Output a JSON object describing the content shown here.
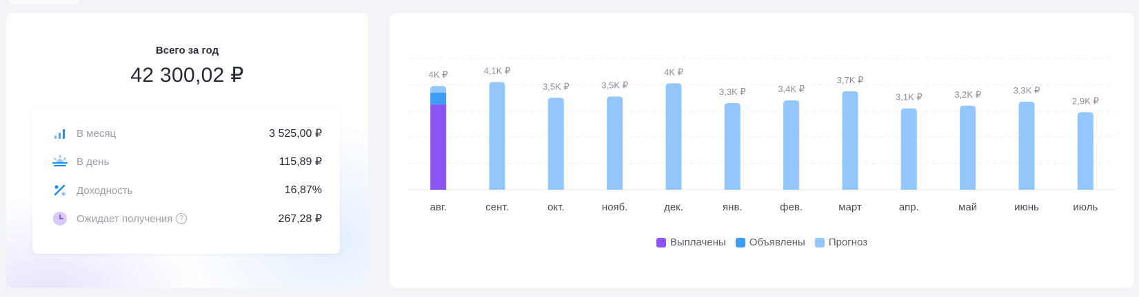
{
  "summary": {
    "title": "Всего за год",
    "total": "42 300,02 ₽",
    "stats": [
      {
        "icon": "bar-chart-icon",
        "label": "В месяц",
        "value": "3 525,00 ₽"
      },
      {
        "icon": "sunrise-icon",
        "label": "В день",
        "value": "115,89 ₽"
      },
      {
        "icon": "percent-icon",
        "label": "Доходность",
        "value": "16,87%"
      },
      {
        "icon": "clock-icon",
        "label": "Ожидает получения",
        "value": "267,28 ₽",
        "help": "?"
      }
    ]
  },
  "chart_data": {
    "type": "bar",
    "stacked": true,
    "categories": [
      "авг.",
      "сент.",
      "окт.",
      "нояб.",
      "дек.",
      "янв.",
      "фев.",
      "март",
      "апр.",
      "май",
      "июнь",
      "июль"
    ],
    "data_labels": [
      "4K ₽",
      "4,1K ₽",
      "3,5K ₽",
      "3,5K ₽",
      "4K ₽",
      "3,3K ₽",
      "3,4K ₽",
      "3,7K ₽",
      "3,1K ₽",
      "3,2K ₽",
      "3,3K ₽",
      "2,9K ₽"
    ],
    "series": [
      {
        "name": "Выплачены",
        "color": "#8b55f5",
        "values": [
          3250,
          0,
          0,
          0,
          0,
          0,
          0,
          0,
          0,
          0,
          0,
          0
        ]
      },
      {
        "name": "Объявлены",
        "color": "#3d9df5",
        "values": [
          450,
          0,
          0,
          0,
          0,
          0,
          0,
          0,
          0,
          0,
          0,
          0
        ]
      },
      {
        "name": "Прогноз",
        "color": "#93c6fb",
        "values": [
          250,
          4100,
          3500,
          3550,
          4050,
          3300,
          3400,
          3750,
          3100,
          3200,
          3350,
          2950
        ]
      }
    ],
    "ylim": [
      0,
      5000
    ],
    "grid": true,
    "legend": "bottom"
  }
}
